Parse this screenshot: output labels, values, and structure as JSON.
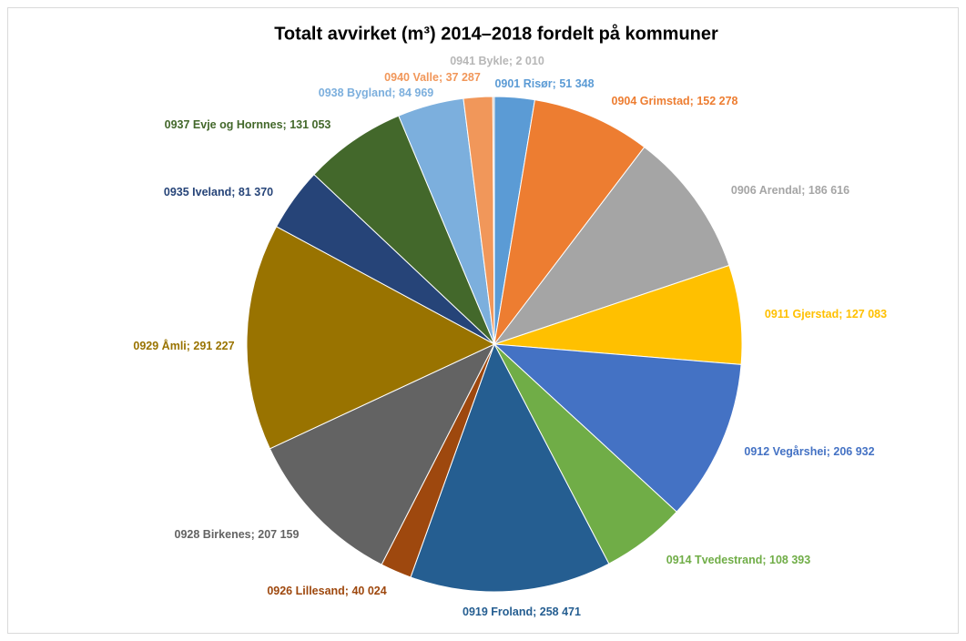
{
  "chart_data": {
    "type": "pie",
    "title": "Totalt avvirket (m³) 2014–2018 fordelt på kommuner",
    "separator": "; ",
    "categories": [
      "0901 Risør",
      "0904 Grimstad",
      "0906 Arendal",
      "0911 Gjerstad",
      "0912 Vegårshei",
      "0914 Tvedestrand",
      "0919 Froland",
      "0926 Lillesand",
      "0928 Birkenes",
      "0929 Åmli",
      "0935 Iveland",
      "0937 Evje og Hornnes",
      "0938 Bygland",
      "0940 Valle",
      "0941 Bykle"
    ],
    "values": [
      51348,
      152278,
      186616,
      127083,
      206932,
      108393,
      258471,
      40024,
      207159,
      291227,
      81370,
      131053,
      84969,
      37287,
      2010
    ],
    "value_labels": [
      "51 348",
      "152 278",
      "186 616",
      "127 083",
      "206 932",
      "108 393",
      "258 471",
      "40 024",
      "207 159",
      "291 227",
      "81 370",
      "131 053",
      "84 969",
      "37 287",
      "2 010"
    ],
    "colors": [
      "#5b9bd5",
      "#ed7d31",
      "#a5a5a5",
      "#ffc000",
      "#4472c4",
      "#70ad47",
      "#255e91",
      "#9e480e",
      "#636363",
      "#997300",
      "#264478",
      "#43682b",
      "#7cafdd",
      "#f1975a",
      "#b7b7b7"
    ]
  }
}
